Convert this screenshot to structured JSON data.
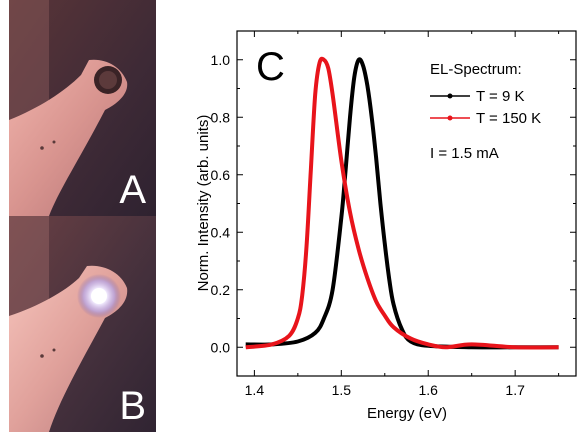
{
  "photos": [
    {
      "label": "A"
    },
    {
      "label": "B"
    }
  ],
  "chart_data": {
    "type": "line",
    "panel_label": "C",
    "xlabel": "Energy (eV)",
    "ylabel": "Norm. Intensity (arb. units)",
    "xlim": [
      1.38,
      1.77
    ],
    "ylim": [
      -0.1,
      1.1
    ],
    "x_ticks": [
      1.4,
      1.5,
      1.6,
      1.7
    ],
    "x_tick_labels": [
      "1.4",
      "1.5",
      "1.6",
      "1.7"
    ],
    "y_ticks": [
      0.0,
      0.2,
      0.4,
      0.6,
      0.8,
      1.0
    ],
    "y_tick_labels": [
      "0.0",
      "0.2",
      "0.4",
      "0.6",
      "0.8",
      "1.0"
    ],
    "grid": false,
    "legend": {
      "title": "EL-Spectrum:",
      "note": "I = 1.5 mA",
      "placement": "top-right"
    },
    "series": [
      {
        "name": "T = 9 K",
        "color": "#000000",
        "x": [
          1.39,
          1.42,
          1.45,
          1.47,
          1.48,
          1.49,
          1.5,
          1.505,
          1.51,
          1.515,
          1.52,
          1.525,
          1.53,
          1.535,
          1.54,
          1.545,
          1.55,
          1.555,
          1.56,
          1.57,
          1.58,
          1.6,
          1.65,
          1.7,
          1.75
        ],
        "y": [
          0.01,
          0.01,
          0.02,
          0.05,
          0.1,
          0.2,
          0.45,
          0.62,
          0.8,
          0.94,
          1.0,
          0.98,
          0.91,
          0.8,
          0.66,
          0.5,
          0.36,
          0.24,
          0.15,
          0.06,
          0.02,
          0.005,
          0.0,
          0.0,
          0.0
        ]
      },
      {
        "name": "T = 150 K",
        "color": "#e8141b",
        "x": [
          1.39,
          1.42,
          1.44,
          1.45,
          1.455,
          1.46,
          1.465,
          1.47,
          1.475,
          1.48,
          1.485,
          1.49,
          1.5,
          1.51,
          1.52,
          1.53,
          1.54,
          1.55,
          1.56,
          1.58,
          1.6,
          1.62,
          1.65,
          1.7,
          1.75
        ],
        "y": [
          0.0,
          0.01,
          0.04,
          0.1,
          0.18,
          0.35,
          0.62,
          0.88,
          0.99,
          1.0,
          0.97,
          0.88,
          0.65,
          0.47,
          0.34,
          0.24,
          0.16,
          0.11,
          0.07,
          0.03,
          0.01,
          0.0,
          0.01,
          0.0,
          0.0
        ]
      }
    ]
  }
}
